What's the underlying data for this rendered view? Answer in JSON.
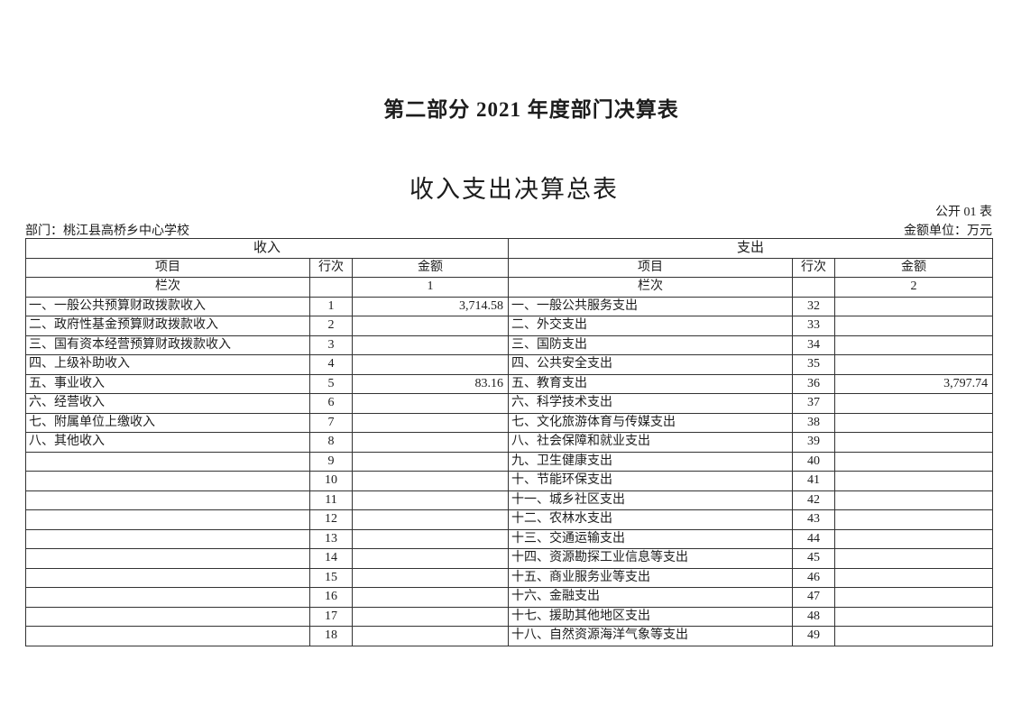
{
  "header": {
    "part_title": "第二部分 2021 年度部门决算表",
    "table_title": "收入支出决算总表",
    "table_code": "公开 01 表",
    "department": "部门：桃江县高桥乡中心学校",
    "unit": "金额单位：万元"
  },
  "colors": {
    "text": "#1c1c1c",
    "border": "#333333",
    "background": "#ffffff"
  },
  "income": {
    "section_header": "收入",
    "columns": [
      "项目",
      "行次",
      "金额"
    ],
    "lanci_label": "栏次",
    "lanci_value": "1",
    "rows": [
      {
        "item": "一、一般公共预算财政拨款收入",
        "line": "1",
        "amount": "3,714.58"
      },
      {
        "item": "二、政府性基金预算财政拨款收入",
        "line": "2",
        "amount": ""
      },
      {
        "item": "三、国有资本经营预算财政拨款收入",
        "line": "3",
        "amount": ""
      },
      {
        "item": "四、上级补助收入",
        "line": "4",
        "amount": ""
      },
      {
        "item": "五、事业收入",
        "line": "5",
        "amount": "83.16"
      },
      {
        "item": "六、经营收入",
        "line": "6",
        "amount": ""
      },
      {
        "item": "七、附属单位上缴收入",
        "line": "7",
        "amount": ""
      },
      {
        "item": "八、其他收入",
        "line": "8",
        "amount": ""
      },
      {
        "item": "",
        "line": "9",
        "amount": ""
      },
      {
        "item": "",
        "line": "10",
        "amount": ""
      },
      {
        "item": "",
        "line": "11",
        "amount": ""
      },
      {
        "item": "",
        "line": "12",
        "amount": ""
      },
      {
        "item": "",
        "line": "13",
        "amount": ""
      },
      {
        "item": "",
        "line": "14",
        "amount": ""
      },
      {
        "item": "",
        "line": "15",
        "amount": ""
      },
      {
        "item": "",
        "line": "16",
        "amount": ""
      },
      {
        "item": "",
        "line": "17",
        "amount": ""
      },
      {
        "item": "",
        "line": "18",
        "amount": ""
      }
    ]
  },
  "expenditure": {
    "section_header": "支出",
    "columns": [
      "项目",
      "行次",
      "金额"
    ],
    "lanci_label": "栏次",
    "lanci_value": "2",
    "rows": [
      {
        "item": "一、一般公共服务支出",
        "line": "32",
        "amount": ""
      },
      {
        "item": "二、外交支出",
        "line": "33",
        "amount": ""
      },
      {
        "item": "三、国防支出",
        "line": "34",
        "amount": ""
      },
      {
        "item": "四、公共安全支出",
        "line": "35",
        "amount": ""
      },
      {
        "item": "五、教育支出",
        "line": "36",
        "amount": "3,797.74"
      },
      {
        "item": "六、科学技术支出",
        "line": "37",
        "amount": ""
      },
      {
        "item": "七、文化旅游体育与传媒支出",
        "line": "38",
        "amount": ""
      },
      {
        "item": "八、社会保障和就业支出",
        "line": "39",
        "amount": ""
      },
      {
        "item": "九、卫生健康支出",
        "line": "40",
        "amount": ""
      },
      {
        "item": "十、节能环保支出",
        "line": "41",
        "amount": ""
      },
      {
        "item": "十一、城乡社区支出",
        "line": "42",
        "amount": ""
      },
      {
        "item": "十二、农林水支出",
        "line": "43",
        "amount": ""
      },
      {
        "item": "十三、交通运输支出",
        "line": "44",
        "amount": ""
      },
      {
        "item": "十四、资源勘探工业信息等支出",
        "line": "45",
        "amount": ""
      },
      {
        "item": "十五、商业服务业等支出",
        "line": "46",
        "amount": ""
      },
      {
        "item": "十六、金融支出",
        "line": "47",
        "amount": ""
      },
      {
        "item": "十七、援助其他地区支出",
        "line": "48",
        "amount": ""
      },
      {
        "item": "十八、自然资源海洋气象等支出",
        "line": "49",
        "amount": ""
      }
    ]
  }
}
